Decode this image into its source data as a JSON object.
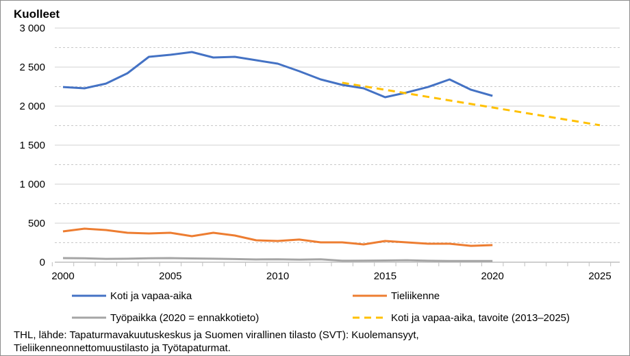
{
  "chart_data": {
    "type": "line",
    "title": "Kuolleet",
    "xlim": [
      2000,
      2025
    ],
    "ylim": [
      0,
      3000
    ],
    "x_ticks": [
      2000,
      2005,
      2010,
      2015,
      2020,
      2025
    ],
    "y_ticks": [
      0,
      500,
      1000,
      1500,
      2000,
      2500,
      3000
    ],
    "y_tick_labels": [
      "0",
      "500",
      "1 000",
      "1 500",
      "2 000",
      "2 500",
      "3 000"
    ],
    "grid": "horizontal, solid at major ticks, dashed at midpoints",
    "legend_position": "bottom",
    "series": [
      {
        "name": "Koti ja vapaa-aika",
        "color": "#4472c4",
        "style": "solid",
        "x": [
          2000,
          2001,
          2002,
          2003,
          2004,
          2005,
          2006,
          2007,
          2008,
          2009,
          2010,
          2011,
          2012,
          2013,
          2014,
          2015,
          2016,
          2017,
          2018,
          2019,
          2020
        ],
        "values": [
          2245,
          2228,
          2289,
          2421,
          2632,
          2658,
          2693,
          2623,
          2632,
          2588,
          2544,
          2447,
          2342,
          2272,
          2228,
          2114,
          2175,
          2245,
          2342,
          2210,
          2132
        ]
      },
      {
        "name": "Tieliikenne",
        "color": "#ed7d31",
        "style": "solid",
        "x": [
          2000,
          2001,
          2002,
          2003,
          2004,
          2005,
          2006,
          2007,
          2008,
          2009,
          2010,
          2011,
          2012,
          2013,
          2014,
          2015,
          2016,
          2017,
          2018,
          2019,
          2020
        ],
        "values": [
          395,
          430,
          412,
          377,
          368,
          377,
          333,
          377,
          342,
          281,
          272,
          290,
          254,
          254,
          228,
          272,
          254,
          237,
          237,
          210,
          219
        ]
      },
      {
        "name": "Työpaikka (2020 = ennakkotieto)",
        "color": "#a5a5a5",
        "style": "solid",
        "x": [
          2000,
          2001,
          2002,
          2003,
          2004,
          2005,
          2006,
          2007,
          2008,
          2009,
          2010,
          2011,
          2012,
          2013,
          2014,
          2015,
          2016,
          2017,
          2018,
          2019,
          2020
        ],
        "values": [
          53,
          50,
          43,
          45,
          50,
          53,
          48,
          45,
          40,
          35,
          38,
          33,
          38,
          18,
          20,
          22,
          25,
          18,
          15,
          15,
          15
        ]
      },
      {
        "name": "Koti ja vapaa-aika, tavoite (2013–2025)",
        "color": "#ffc000",
        "style": "dashed",
        "x": [
          2013,
          2025
        ],
        "values": [
          2300,
          1755
        ]
      }
    ]
  },
  "source": {
    "line1": "THL, lähde: Tapaturmavakuutuskeskus ja Suomen virallinen tilasto (SVT): Kuolemansyyt,",
    "line2": "Tieliikenneonnettomuustilasto ja Työtapaturmat."
  }
}
